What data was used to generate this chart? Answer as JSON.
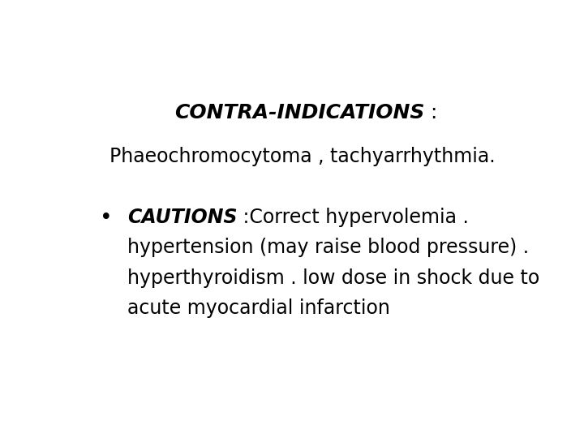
{
  "background_color": "#ffffff",
  "text_color": "#000000",
  "title_bi": "CONTRA-INDICATIONS",
  "title_normal": " :",
  "subtitle": "Phaeochromocytoma , tachyarrhythmia.",
  "cautions_bi": "CAUTIONS",
  "cautions_rest": " :Correct hypervolemia .",
  "line2": "hypertension (may raise blood pressure) .",
  "line3": "hyperthyroidism . low dose in shock due to",
  "line4": "acute myocardial infarction",
  "title_fontsize": 18,
  "body_fontsize": 17,
  "fig_width": 7.2,
  "fig_height": 5.4
}
